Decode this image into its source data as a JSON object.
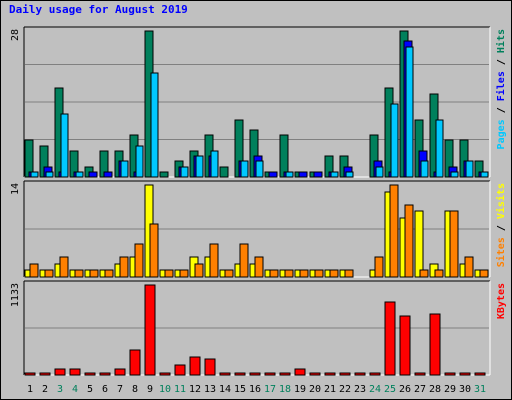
{
  "chart_data": {
    "type": "bar",
    "title": "Daily usage for August 2019",
    "days": [
      "1",
      "2",
      "3",
      "4",
      "5",
      "6",
      "7",
      "8",
      "9",
      "10",
      "11",
      "12",
      "13",
      "14",
      "15",
      "16",
      "17",
      "18",
      "19",
      "20",
      "21",
      "22",
      "23",
      "24",
      "25",
      "26",
      "27",
      "28",
      "29",
      "30",
      "31"
    ],
    "weekend_days": [
      3,
      4,
      10,
      11,
      17,
      18,
      24,
      25,
      31
    ],
    "colors": {
      "hits": "#00805c",
      "files": "#0000ff",
      "pages": "#00c8ff",
      "visits": "#ffff00",
      "sites": "#ff8000",
      "kbytes": "#ff0000",
      "weekday_label": "#000000",
      "weekend_label": "#00805c",
      "background": "#c0c0c0"
    },
    "panels": [
      {
        "id": "hits-files-pages",
        "scale_label": "28",
        "ymax": 28,
        "legend": [
          {
            "text": "Pages",
            "color": "#00c8ff"
          },
          {
            "text": " / ",
            "color": "#000000"
          },
          {
            "text": "Files",
            "color": "#0000ff"
          },
          {
            "text": " / ",
            "color": "#000000"
          },
          {
            "text": "Hits",
            "color": "#00805c"
          }
        ],
        "series": [
          {
            "name": "Hits",
            "color": "#00805c",
            "values": [
              7,
              6,
              17,
              5,
              2,
              5,
              5,
              8,
              28,
              1,
              3,
              5,
              8,
              2,
              11,
              9,
              1,
              8,
              1,
              1,
              4,
              4,
              0,
              8,
              17,
              28,
              11,
              16,
              7,
              7,
              3
            ]
          },
          {
            "name": "Files",
            "color": "#0000ff",
            "values": [
              1,
              2,
              1,
              1,
              1,
              1,
              3,
              1,
              0,
              0,
              2,
              4,
              4,
              0,
              3,
              4,
              1,
              1,
              1,
              1,
              1,
              2,
              0,
              3,
              1,
              26,
              5,
              1,
              2,
              3,
              1
            ]
          },
          {
            "name": "Pages",
            "color": "#00c8ff",
            "values": [
              1,
              1,
              12,
              1,
              0,
              0,
              3,
              6,
              20,
              0,
              2,
              4,
              5,
              0,
              3,
              3,
              0,
              1,
              0,
              0,
              1,
              1,
              0,
              2,
              14,
              25,
              3,
              11,
              1,
              3,
              1
            ]
          }
        ]
      },
      {
        "id": "visits-sites",
        "scale_label": "14",
        "ymax": 14,
        "legend": [
          {
            "text": "Sites",
            "color": "#ff8000"
          },
          {
            "text": " / ",
            "color": "#000000"
          },
          {
            "text": "Visits",
            "color": "#ffff00"
          }
        ],
        "series": [
          {
            "name": "Visits",
            "color": "#ffff00",
            "values": [
              1,
              1,
              2,
              1,
              1,
              1,
              2,
              3,
              14,
              1,
              1,
              3,
              3,
              1,
              2,
              2,
              1,
              1,
              1,
              1,
              1,
              1,
              0,
              1,
              13,
              9,
              10,
              2,
              10,
              2,
              1
            ]
          },
          {
            "name": "Sites",
            "color": "#ff8000",
            "values": [
              2,
              1,
              3,
              1,
              1,
              1,
              3,
              5,
              8,
              1,
              1,
              2,
              5,
              1,
              5,
              3,
              1,
              1,
              1,
              1,
              1,
              1,
              0,
              3,
              14,
              11,
              1,
              1,
              10,
              3,
              1
            ]
          }
        ]
      },
      {
        "id": "kbytes",
        "scale_label": "1133",
        "ymax": 1133,
        "legend": [
          {
            "text": "KBytes",
            "color": "#ff0000"
          }
        ],
        "series": [
          {
            "name": "KBytes",
            "color": "#ff0000",
            "values": [
              10,
              10,
              80,
              80,
              10,
              10,
              80,
              320,
              1133,
              10,
              120,
              230,
              200,
              10,
              10,
              10,
              10,
              10,
              80,
              10,
              10,
              10,
              10,
              10,
              920,
              740,
              10,
              770,
              10,
              10,
              10
            ]
          }
        ]
      }
    ]
  }
}
